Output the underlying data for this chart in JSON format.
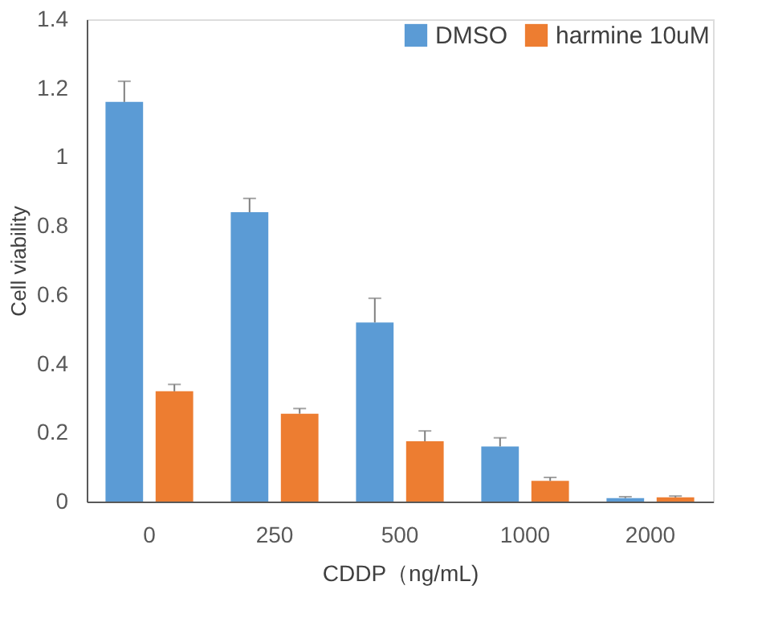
{
  "chart_data": {
    "type": "bar",
    "xlabel": "CDDP（ng/mL)",
    "ylabel": "Cell viability",
    "categories": [
      "0",
      "250",
      "500",
      "1000",
      "2000"
    ],
    "series": [
      {
        "name": "DMSO",
        "color": "#5b9bd5",
        "values": [
          1.16,
          0.84,
          0.52,
          0.16,
          0.01
        ],
        "errors": [
          [
            1.16,
            1.22
          ],
          [
            0.84,
            0.88
          ],
          [
            0.52,
            0.59
          ],
          [
            0.16,
            0.185
          ],
          [
            0.01,
            0.014
          ]
        ]
      },
      {
        "name": "harmine 10uM",
        "color": "#ed7d31",
        "values": [
          0.32,
          0.255,
          0.175,
          0.06,
          0.012
        ],
        "errors": [
          [
            0.32,
            0.34
          ],
          [
            0.255,
            0.27
          ],
          [
            0.175,
            0.205
          ],
          [
            0.06,
            0.07
          ],
          [
            0.012,
            0.016
          ]
        ]
      }
    ],
    "ylim": [
      0,
      1.4
    ],
    "yticks": [
      0,
      0.2,
      0.4,
      0.6,
      0.8,
      1,
      1.2,
      1.4
    ],
    "grid": false,
    "legend": "top right"
  }
}
